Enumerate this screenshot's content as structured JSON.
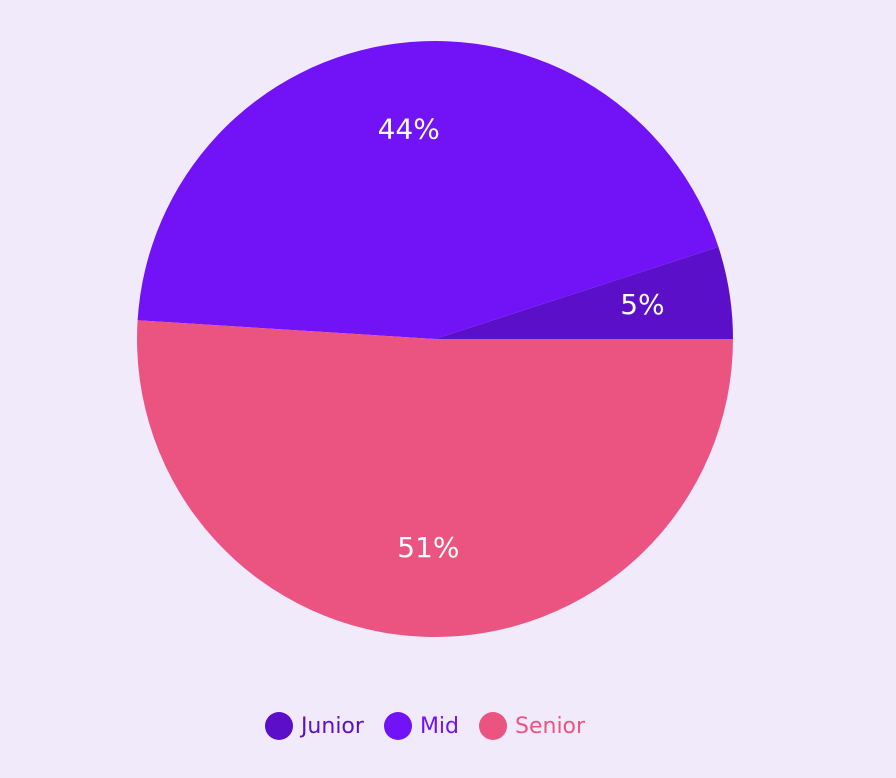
{
  "chart_data": {
    "type": "pie",
    "categories": [
      "Junior",
      "Mid",
      "Senior"
    ],
    "values": [
      5,
      44,
      51
    ],
    "value_labels": [
      "5%",
      "44%",
      "51%"
    ],
    "colors": [
      "#5b0fc9",
      "#7113f6",
      "#eb5481"
    ],
    "legend_text_colors": [
      "#5b0fc9",
      "#7113f6",
      "#eb5481"
    ],
    "legend_position": "bottom",
    "start_angle": "3 o'clock, counter-clockwise"
  },
  "legend": {
    "items": [
      {
        "label": "Junior",
        "color": "#5b0fc9"
      },
      {
        "label": "Mid",
        "color": "#7113f6"
      },
      {
        "label": "Senior",
        "color": "#eb5481"
      }
    ]
  }
}
